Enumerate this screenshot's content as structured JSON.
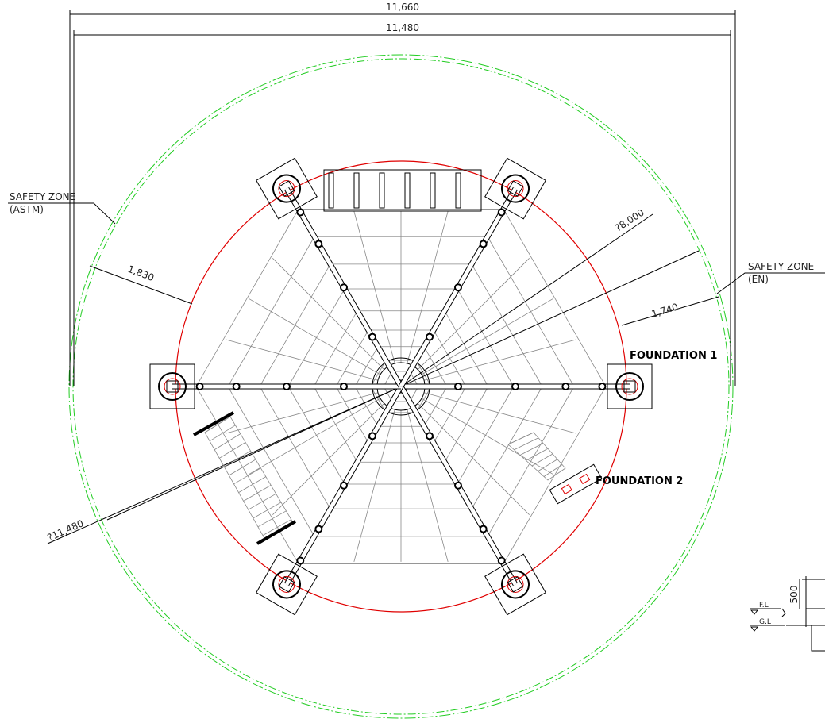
{
  "dimensions": {
    "overall_width": "11,660",
    "inner_width": "11,480",
    "inner_diameter": "?8,000",
    "outer_diameter": "?11,480",
    "astm_clearance": "1,830",
    "en_clearance": "1,740",
    "height": "500"
  },
  "labels": {
    "safety_zone_astm": [
      "SAFETY ZONE",
      "(ASTM)"
    ],
    "safety_zone_en": [
      "SAFETY ZONE",
      "(EN)"
    ],
    "foundation_1": "FOUNDATION 1",
    "foundation_2": "FOUNDATION 2",
    "finish_level": "F.L",
    "ground_level": "G.L"
  }
}
